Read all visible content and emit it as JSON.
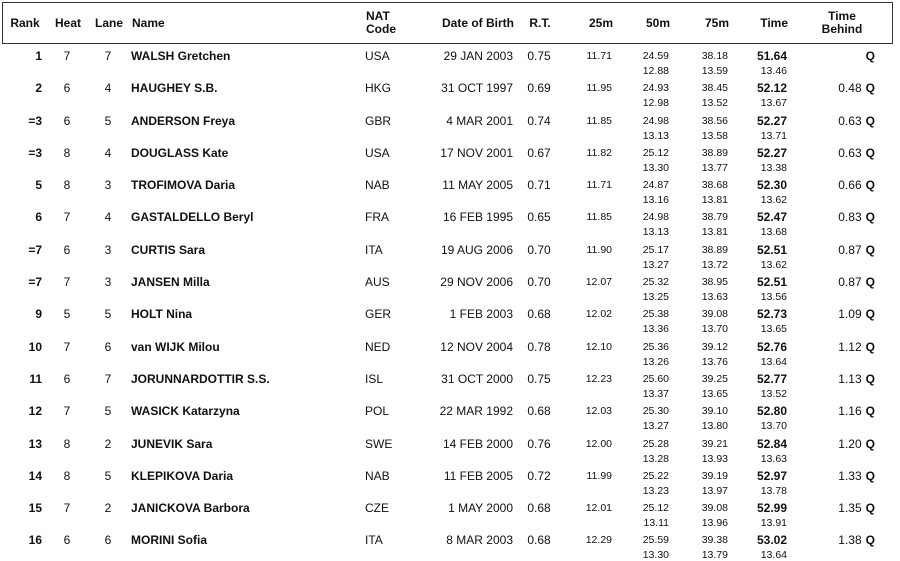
{
  "colors": {
    "text": "#111111",
    "border": "#333333",
    "background": "#ffffff"
  },
  "table": {
    "headers": {
      "rank": "Rank",
      "heat": "Heat",
      "lane": "Lane",
      "name": "Name",
      "nat1": "NAT",
      "nat2": "Code",
      "dob": "Date of Birth",
      "rt": "R.T.",
      "d25": "25m",
      "d50": "50m",
      "d75": "75m",
      "time": "Time",
      "behind1": "Time",
      "behind2": "Behind"
    },
    "rows": [
      {
        "rank": "1",
        "heat": "7",
        "lane": "7",
        "name": "WALSH Gretchen",
        "nat": "USA",
        "dob": "29 JAN 2003",
        "rt": "0.75",
        "t25": "11.71",
        "t50": "24.59",
        "t75": "38.18",
        "time": "51.64",
        "lap50": "12.88",
        "lap75": "13.59",
        "lap_time": "13.46",
        "behind": "",
        "qualified": "Q"
      },
      {
        "rank": "2",
        "heat": "6",
        "lane": "4",
        "name": "HAUGHEY S.B.",
        "nat": "HKG",
        "dob": "31 OCT 1997",
        "rt": "0.69",
        "t25": "11.95",
        "t50": "24.93",
        "t75": "38.45",
        "time": "52.12",
        "lap50": "12.98",
        "lap75": "13.52",
        "lap_time": "13.67",
        "behind": "0.48",
        "qualified": "Q"
      },
      {
        "rank": "=3",
        "heat": "6",
        "lane": "5",
        "name": "ANDERSON Freya",
        "nat": "GBR",
        "dob": "4 MAR 2001",
        "rt": "0.74",
        "t25": "11.85",
        "t50": "24.98",
        "t75": "38.56",
        "time": "52.27",
        "lap50": "13.13",
        "lap75": "13.58",
        "lap_time": "13.71",
        "behind": "0.63",
        "qualified": "Q"
      },
      {
        "rank": "=3",
        "heat": "8",
        "lane": "4",
        "name": "DOUGLASS Kate",
        "nat": "USA",
        "dob": "17 NOV 2001",
        "rt": "0.67",
        "t25": "11.82",
        "t50": "25.12",
        "t75": "38.89",
        "time": "52.27",
        "lap50": "13.30",
        "lap75": "13.77",
        "lap_time": "13.38",
        "behind": "0.63",
        "qualified": "Q"
      },
      {
        "rank": "5",
        "heat": "8",
        "lane": "3",
        "name": "TROFIMOVA Daria",
        "nat": "NAB",
        "dob": "11 MAY 2005",
        "rt": "0.71",
        "t25": "11.71",
        "t50": "24.87",
        "t75": "38.68",
        "time": "52.30",
        "lap50": "13.16",
        "lap75": "13.81",
        "lap_time": "13.62",
        "behind": "0.66",
        "qualified": "Q"
      },
      {
        "rank": "6",
        "heat": "7",
        "lane": "4",
        "name": "GASTALDELLO Beryl",
        "nat": "FRA",
        "dob": "16 FEB 1995",
        "rt": "0.65",
        "t25": "11.85",
        "t50": "24.98",
        "t75": "38.79",
        "time": "52.47",
        "lap50": "13.13",
        "lap75": "13.81",
        "lap_time": "13.68",
        "behind": "0.83",
        "qualified": "Q"
      },
      {
        "rank": "=7",
        "heat": "6",
        "lane": "3",
        "name": "CURTIS Sara",
        "nat": "ITA",
        "dob": "19 AUG 2006",
        "rt": "0.70",
        "t25": "11.90",
        "t50": "25.17",
        "t75": "38.89",
        "time": "52.51",
        "lap50": "13.27",
        "lap75": "13.72",
        "lap_time": "13.62",
        "behind": "0.87",
        "qualified": "Q"
      },
      {
        "rank": "=7",
        "heat": "7",
        "lane": "3",
        "name": "JANSEN Milla",
        "nat": "AUS",
        "dob": "29 NOV 2006",
        "rt": "0.70",
        "t25": "12.07",
        "t50": "25.32",
        "t75": "38.95",
        "time": "52.51",
        "lap50": "13.25",
        "lap75": "13.63",
        "lap_time": "13.56",
        "behind": "0.87",
        "qualified": "Q"
      },
      {
        "rank": "9",
        "heat": "5",
        "lane": "5",
        "name": "HOLT Nina",
        "nat": "GER",
        "dob": "1 FEB 2003",
        "rt": "0.68",
        "t25": "12.02",
        "t50": "25.38",
        "t75": "39.08",
        "time": "52.73",
        "lap50": "13.36",
        "lap75": "13.70",
        "lap_time": "13.65",
        "behind": "1.09",
        "qualified": "Q"
      },
      {
        "rank": "10",
        "heat": "7",
        "lane": "6",
        "name": "van WIJK Milou",
        "nat": "NED",
        "dob": "12 NOV 2004",
        "rt": "0.78",
        "t25": "12.10",
        "t50": "25.36",
        "t75": "39.12",
        "time": "52.76",
        "lap50": "13.26",
        "lap75": "13.76",
        "lap_time": "13.64",
        "behind": "1.12",
        "qualified": "Q"
      },
      {
        "rank": "11",
        "heat": "6",
        "lane": "7",
        "name": "JORUNNARDOTTIR S.S.",
        "nat": "ISL",
        "dob": "31 OCT 2000",
        "rt": "0.75",
        "t25": "12.23",
        "t50": "25.60",
        "t75": "39.25",
        "time": "52.77",
        "lap50": "13.37",
        "lap75": "13.65",
        "lap_time": "13.52",
        "behind": "1.13",
        "qualified": "Q"
      },
      {
        "rank": "12",
        "heat": "7",
        "lane": "5",
        "name": "WASICK Katarzyna",
        "nat": "POL",
        "dob": "22 MAR 1992",
        "rt": "0.68",
        "t25": "12.03",
        "t50": "25.30",
        "t75": "39.10",
        "time": "52.80",
        "lap50": "13.27",
        "lap75": "13.80",
        "lap_time": "13.70",
        "behind": "1.16",
        "qualified": "Q"
      },
      {
        "rank": "13",
        "heat": "8",
        "lane": "2",
        "name": "JUNEVIK Sara",
        "nat": "SWE",
        "dob": "14 FEB 2000",
        "rt": "0.76",
        "t25": "12.00",
        "t50": "25.28",
        "t75": "39.21",
        "time": "52.84",
        "lap50": "13.28",
        "lap75": "13.93",
        "lap_time": "13.63",
        "behind": "1.20",
        "qualified": "Q"
      },
      {
        "rank": "14",
        "heat": "8",
        "lane": "5",
        "name": "KLEPIKOVA Daria",
        "nat": "NAB",
        "dob": "11 FEB 2005",
        "rt": "0.72",
        "t25": "11.99",
        "t50": "25.22",
        "t75": "39.19",
        "time": "52.97",
        "lap50": "13.23",
        "lap75": "13.97",
        "lap_time": "13.78",
        "behind": "1.33",
        "qualified": "Q"
      },
      {
        "rank": "15",
        "heat": "7",
        "lane": "2",
        "name": "JANICKOVA Barbora",
        "nat": "CZE",
        "dob": "1 MAY 2000",
        "rt": "0.68",
        "t25": "12.01",
        "t50": "25.12",
        "t75": "39.08",
        "time": "52.99",
        "lap50": "13.11",
        "lap75": "13.96",
        "lap_time": "13.91",
        "behind": "1.35",
        "qualified": "Q"
      },
      {
        "rank": "16",
        "heat": "6",
        "lane": "6",
        "name": "MORINI Sofia",
        "nat": "ITA",
        "dob": "8 MAR 2003",
        "rt": "0.68",
        "t25": "12.29",
        "t50": "25.59",
        "t75": "39.38",
        "time": "53.02",
        "lap50": "13.30",
        "lap75": "13.79",
        "lap_time": "13.64",
        "behind": "1.38",
        "qualified": "Q"
      }
    ]
  }
}
